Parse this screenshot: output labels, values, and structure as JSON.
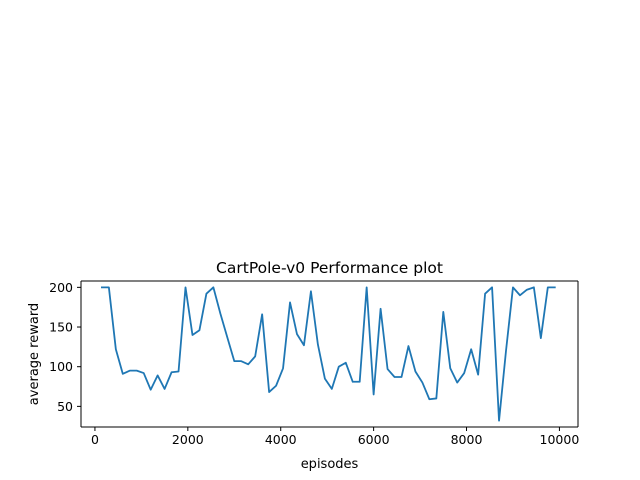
{
  "chart_data": {
    "type": "line",
    "title": "CartPole-v0 Performance plot",
    "xlabel": "episodes",
    "ylabel": "average reward",
    "xlim": [
      -300,
      10400
    ],
    "ylim": [
      24,
      208
    ],
    "xticks": [
      0,
      2000,
      4000,
      6000,
      8000,
      10000
    ],
    "yticks": [
      50,
      100,
      150,
      200
    ],
    "grid": false,
    "line_color": "#1f77b4",
    "series": [
      {
        "x": [
          150,
          300,
          450,
          600,
          750,
          900,
          1050,
          1200,
          1350,
          1500,
          1650,
          1800,
          1950,
          2100,
          2250,
          2400,
          2550,
          2700,
          2850,
          3000,
          3150,
          3300,
          3450,
          3600,
          3750,
          3900,
          4050,
          4200,
          4350,
          4500,
          4650,
          4800,
          4950,
          5100,
          5250,
          5400,
          5550,
          5700,
          5850,
          6000,
          6150,
          6300,
          6450,
          6600,
          6750,
          6900,
          7050,
          7200,
          7350,
          7500,
          7650,
          7800,
          7950,
          8100,
          8250,
          8400,
          8550,
          8700,
          8850,
          9000,
          9150,
          9300,
          9450,
          9600,
          9750,
          9900
        ],
        "values": [
          200,
          200,
          122,
          91,
          95,
          95,
          92,
          71,
          89,
          72,
          93,
          94,
          200,
          140,
          146,
          192,
          200,
          167,
          137,
          107,
          107,
          103,
          113,
          166,
          68,
          76,
          98,
          181,
          141,
          127,
          195,
          128,
          85,
          72,
          100,
          105,
          81,
          81,
          200,
          65,
          173,
          97,
          87,
          87,
          126,
          94,
          80,
          59,
          60,
          169,
          98,
          80,
          92,
          122,
          90,
          192,
          200,
          32,
          120,
          200,
          190,
          197,
          200,
          136,
          200,
          200
        ]
      }
    ]
  }
}
